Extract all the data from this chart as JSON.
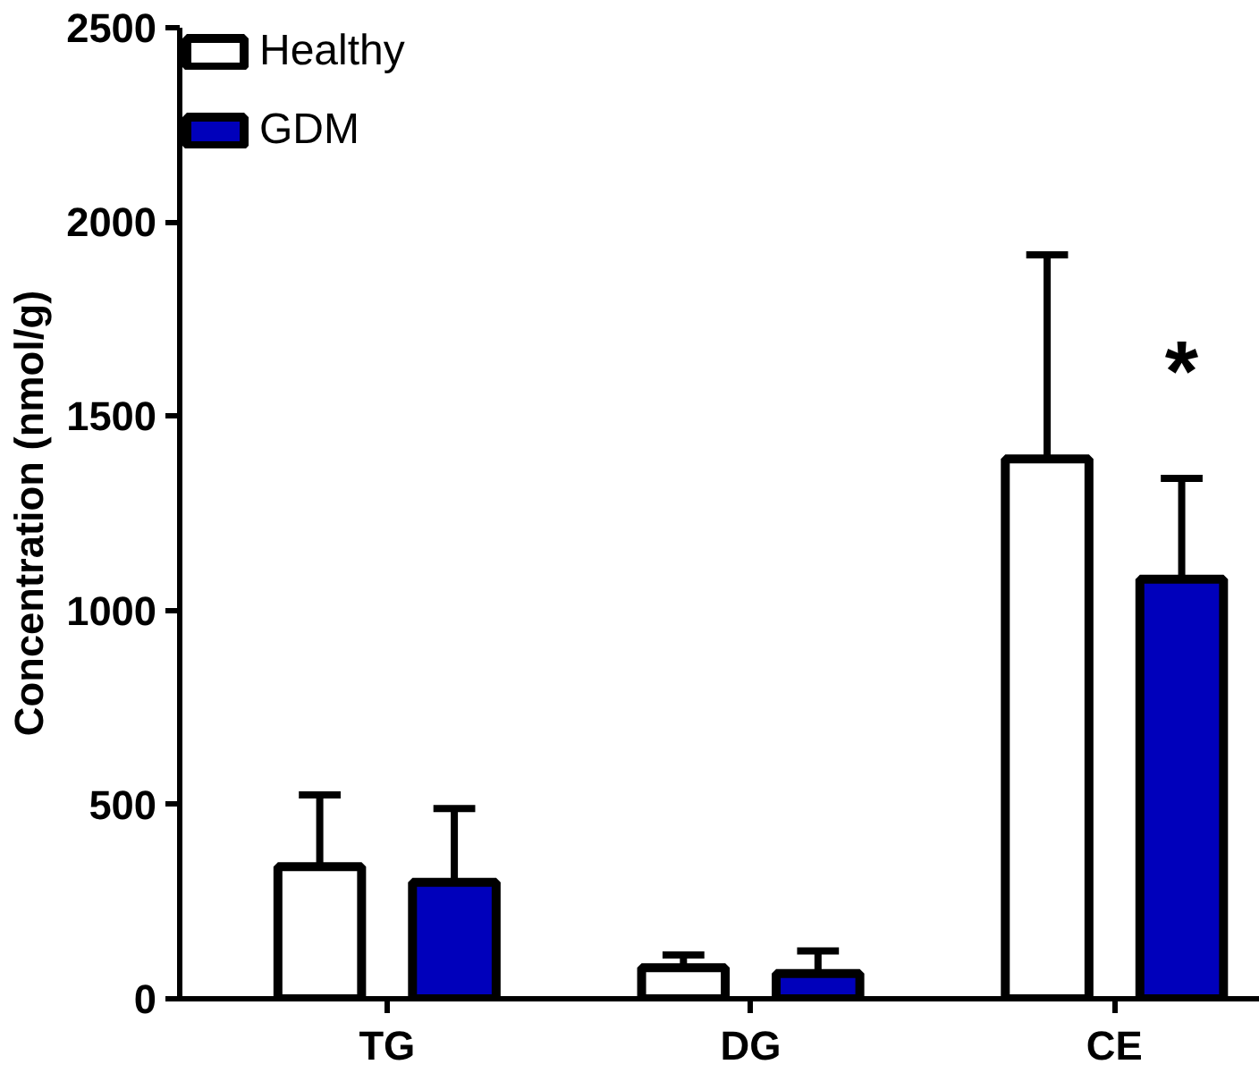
{
  "chart_data": {
    "type": "bar",
    "ylabel": "Concentration (nmol/g)",
    "categories": [
      "TG",
      "DG",
      "CE"
    ],
    "series": [
      {
        "name": "Healthy",
        "color": "#ffffff",
        "values": [
          340,
          80,
          1390
        ],
        "errors": [
          185,
          33,
          525
        ]
      },
      {
        "name": "GDM",
        "color": "#0000bb",
        "values": [
          300,
          65,
          1080
        ],
        "errors": [
          190,
          58,
          260
        ]
      }
    ],
    "ylim": [
      0,
      2500
    ],
    "yticks": [
      0,
      500,
      1000,
      1500,
      2000,
      2500
    ],
    "annotations": [
      "*"
    ],
    "grid": false,
    "legend": "top left"
  }
}
